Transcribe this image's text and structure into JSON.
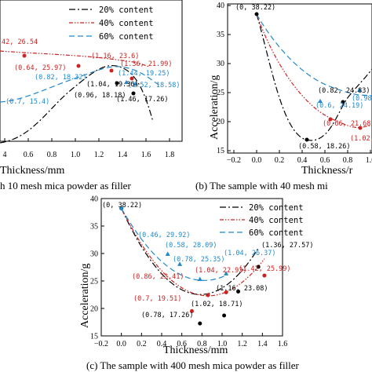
{
  "chart_data": [
    {
      "type": "line",
      "id": "a",
      "caption": "h 10 mesh mica powder as filler",
      "xlabel": "Thickness/mm",
      "ylabel": "",
      "xticks": [
        "4",
        "0.6",
        "0.8",
        "1.0",
        "1.2",
        "1.4",
        "1.6",
        "1.8"
      ],
      "colors": {
        "20% content": "#000000",
        "40% content": "#cc2222",
        "60% content": "#2288cc"
      },
      "legend": [
        "20% content",
        "40% content",
        "60% content"
      ],
      "legend_position": "top-center",
      "points": [
        {
          "label": "42, 26.54",
          "series": "40% content"
        },
        {
          "label": "(0.64, 25.97)",
          "series": "40% content"
        },
        {
          "label": "(1.16, 23.6)",
          "series": "40% content"
        },
        {
          "label": "(1.36, 21.99)",
          "series": "40% content"
        },
        {
          "label": "(0.82, 18.32)",
          "series": "60% content"
        },
        {
          "label": "(1.44, 19.25)",
          "series": "60% content"
        },
        {
          "label": "(1.52, 18.58)",
          "series": "60% content"
        },
        {
          "label": "(0.7, 15.4)",
          "series": "60% content"
        },
        {
          "label": "(1.04, 19.36)",
          "series": "20% content"
        },
        {
          "label": "(0.96, 18.18)",
          "series": "20% content"
        },
        {
          "label": "(1.46, 17.26)",
          "series": "20% content"
        }
      ]
    },
    {
      "type": "line",
      "id": "b",
      "caption": "(b) The sample with 40 mesh mi",
      "xlabel": "Thickness/r",
      "ylabel": "Acceleration/g",
      "xticks": [
        "−0.2",
        "0.0",
        "0.2",
        "0.4",
        "0.6",
        "0.8",
        "1.0"
      ],
      "yticks": [
        "40",
        "35",
        "30",
        "25",
        "20",
        "15"
      ],
      "colors": {
        "20% content": "#000000",
        "40% content": "#cc2222",
        "60% content": "#2288cc"
      },
      "points": [
        {
          "label": "(0, 38.22)",
          "series": "all"
        },
        {
          "label": "(0.82, 24.83)",
          "series": "20% content"
        },
        {
          "label": "(0.58, 18.26)",
          "series": "20% content"
        },
        {
          "label": "(0.6, 24.19)",
          "series": "60% content"
        },
        {
          "label": "(0.98,",
          "series": "60% content"
        },
        {
          "label": "(0.66, 21.68)",
          "series": "40% content"
        },
        {
          "label": "(1.02,",
          "series": "40% content"
        }
      ]
    },
    {
      "type": "line",
      "id": "c",
      "caption": "(c) The sample with 400 mesh mica powder as filler",
      "xlabel": "Thickness/mm",
      "ylabel": "Acceleration/g",
      "xlim": [
        -0.2,
        1.6
      ],
      "ylim": [
        15,
        40
      ],
      "xticks": [
        "−0.2",
        "0.0",
        "0.2",
        "0.4",
        "0.6",
        "0.8",
        "1.0",
        "1.2",
        "1.4",
        "1.6"
      ],
      "yticks": [
        "40",
        "35",
        "30",
        "25",
        "20",
        "15"
      ],
      "legend": [
        "20% content",
        "40% content",
        "60% content"
      ],
      "legend_position": "top-right",
      "series": [
        {
          "name": "20% content",
          "color": "#000000",
          "dash": "8 3 2 3",
          "fit": [
            38.22,
            -40.0,
            25.5
          ],
          "x": [
            0,
            0.78,
            1.02,
            1.16,
            1.36
          ],
          "y": [
            38.22,
            17.26,
            18.71,
            23.08,
            27.57
          ]
        },
        {
          "name": "40% content",
          "color": "#cc2222",
          "dash": "5 2 1.5 2 1.5 2",
          "fit": [
            38.22,
            -37.0,
            21.5
          ],
          "x": [
            0,
            0.7,
            0.86,
            1.04,
            1.42
          ],
          "y": [
            38.22,
            19.51,
            22.41,
            22.93,
            25.99
          ]
        },
        {
          "name": "60% content",
          "color": "#2288cc",
          "dash": "7 4",
          "fit": [
            38.22,
            -32.0,
            19.5
          ],
          "x": [
            0,
            0.46,
            0.58,
            0.78,
            1.04
          ],
          "y": [
            38.22,
            29.92,
            28.09,
            25.35,
            26.37
          ]
        }
      ],
      "annotations": [
        {
          "text": "(0, 38.22)",
          "color": "#000000"
        },
        {
          "text": "(0.46, 29.92)",
          "color": "#2288cc"
        },
        {
          "text": "(0.58, 28.09)",
          "color": "#2288cc"
        },
        {
          "text": "(0.78, 25.35)",
          "color": "#2288cc"
        },
        {
          "text": "(1.04,  26.37)",
          "color": "#2288cc"
        },
        {
          "text": "(1.36,  27.57)",
          "color": "#000000"
        },
        {
          "text": "(0.86, 22.41)",
          "color": "#cc2222"
        },
        {
          "text": "(1.04,  22.93)",
          "color": "#cc2222"
        },
        {
          "text": "(1.42, 25.99)",
          "color": "#cc2222"
        },
        {
          "text": "(1.16,  23.08)",
          "color": "#000000"
        },
        {
          "text": "(0.7, 19.51)",
          "color": "#cc2222"
        },
        {
          "text": "(1.02,  18.71)",
          "color": "#000000"
        },
        {
          "text": "(0.78, 17.26)",
          "color": "#000000"
        }
      ]
    }
  ]
}
